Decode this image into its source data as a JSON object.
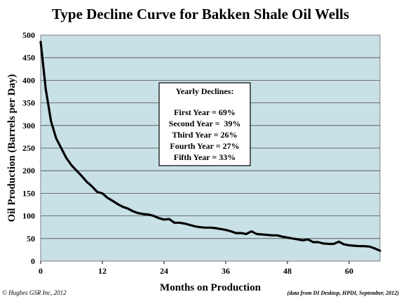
{
  "chart_data": {
    "type": "line",
    "title": "Type Decline Curve for Bakken Shale Oil Wells",
    "xlabel": "Months on Production",
    "ylabel": "Oil Production (Barrels per Day)",
    "xlim": [
      0,
      66
    ],
    "ylim": [
      0,
      500
    ],
    "x_ticks": [
      0,
      12,
      24,
      36,
      48,
      60
    ],
    "y_ticks": [
      0,
      50,
      100,
      150,
      200,
      250,
      300,
      350,
      400,
      450,
      500
    ],
    "grid": true,
    "plot_background": "#c8e1e7",
    "line_color": "#000000",
    "series": [
      {
        "x": [
          0,
          1,
          2,
          3,
          4,
          5,
          6,
          7,
          8,
          9,
          10,
          11,
          12,
          13,
          14,
          15,
          16,
          17,
          18,
          19,
          20,
          21,
          22,
          23,
          24,
          25,
          26,
          27,
          28,
          29,
          30,
          31,
          32,
          33,
          34,
          35,
          36,
          37,
          38,
          39,
          40,
          41,
          42,
          43,
          44,
          45,
          46,
          47,
          48,
          49,
          50,
          51,
          52,
          53,
          54,
          55,
          56,
          57,
          58,
          59,
          60,
          61,
          62,
          63,
          64,
          65,
          66
        ],
        "values": [
          485,
          380,
          310,
          272,
          250,
          228,
          212,
          200,
          188,
          175,
          165,
          153,
          150,
          140,
          133,
          126,
          120,
          116,
          110,
          106,
          104,
          103,
          100,
          95,
          92,
          93,
          85,
          85,
          83,
          80,
          77,
          75,
          74,
          74,
          73,
          71,
          69,
          66,
          62,
          62,
          60,
          66,
          60,
          59,
          58,
          57,
          57,
          54,
          52,
          50,
          48,
          46,
          48,
          42,
          42,
          39,
          38,
          38,
          43,
          37,
          35,
          34,
          33,
          33,
          32,
          28,
          23
        ]
      }
    ],
    "annotation": {
      "title": "Yearly Declines:",
      "lines": [
        "First Year = 69%",
        "Second Year =  39%",
        "Third Year = 26%",
        "Fourth Year = 27%",
        "Fifth Year = 33%"
      ]
    },
    "footer_left": "© Hughes GSR Inc, 2012",
    "footer_right": "(data from DI Desktop, HPDI, September, 2012)"
  }
}
